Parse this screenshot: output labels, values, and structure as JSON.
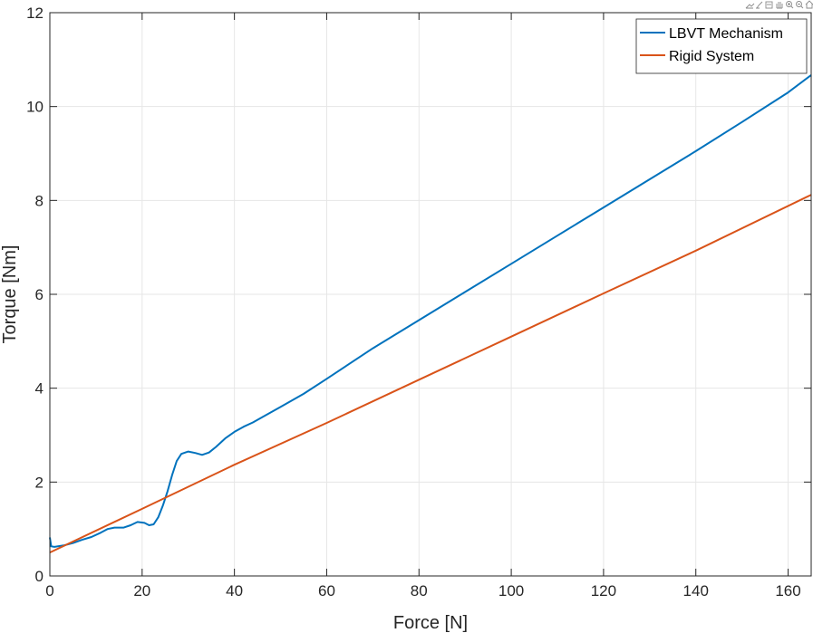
{
  "chart_data": {
    "type": "line",
    "xlabel": "Force [N]",
    "ylabel": "Torque [Nm]",
    "xlim": [
      0,
      165
    ],
    "ylim": [
      0,
      12
    ],
    "xticks": [
      0,
      20,
      40,
      60,
      80,
      100,
      120,
      140,
      160
    ],
    "yticks": [
      0,
      2,
      4,
      6,
      8,
      10,
      12
    ],
    "grid": true,
    "legend_position": "top-right",
    "series": [
      {
        "name": "LBVT Mechanism",
        "color": "#0072BD",
        "points": [
          [
            0,
            0.82
          ],
          [
            0.3,
            0.63
          ],
          [
            1,
            0.62
          ],
          [
            3,
            0.65
          ],
          [
            5,
            0.7
          ],
          [
            7,
            0.77
          ],
          [
            9,
            0.83
          ],
          [
            11,
            0.92
          ],
          [
            12.5,
            1.0
          ],
          [
            14,
            1.03
          ],
          [
            16,
            1.03
          ],
          [
            17.5,
            1.08
          ],
          [
            19,
            1.15
          ],
          [
            20.5,
            1.13
          ],
          [
            21.5,
            1.08
          ],
          [
            22.5,
            1.1
          ],
          [
            23.5,
            1.25
          ],
          [
            24.5,
            1.5
          ],
          [
            25.5,
            1.8
          ],
          [
            26.5,
            2.15
          ],
          [
            27.5,
            2.45
          ],
          [
            28.5,
            2.6
          ],
          [
            30,
            2.65
          ],
          [
            31.5,
            2.62
          ],
          [
            33,
            2.58
          ],
          [
            34.5,
            2.63
          ],
          [
            36,
            2.75
          ],
          [
            38,
            2.93
          ],
          [
            40,
            3.07
          ],
          [
            42,
            3.18
          ],
          [
            44,
            3.27
          ],
          [
            46,
            3.38
          ],
          [
            50,
            3.6
          ],
          [
            55,
            3.88
          ],
          [
            60,
            4.2
          ],
          [
            70,
            4.85
          ],
          [
            80,
            5.45
          ],
          [
            90,
            6.05
          ],
          [
            100,
            6.65
          ],
          [
            110,
            7.25
          ],
          [
            120,
            7.85
          ],
          [
            130,
            8.45
          ],
          [
            140,
            9.05
          ],
          [
            150,
            9.67
          ],
          [
            160,
            10.3
          ],
          [
            165,
            10.67
          ]
        ]
      },
      {
        "name": "Rigid System",
        "color": "#D95319",
        "points": [
          [
            0,
            0.5
          ],
          [
            20,
            1.43
          ],
          [
            40,
            2.37
          ],
          [
            60,
            3.26
          ],
          [
            80,
            4.18
          ],
          [
            100,
            5.1
          ],
          [
            120,
            6.02
          ],
          [
            140,
            6.93
          ],
          [
            165,
            8.12
          ]
        ]
      }
    ]
  },
  "toolbar": {
    "icons": [
      "export-icon",
      "brush-icon",
      "datatip-icon",
      "pan-icon",
      "zoom-in-icon",
      "zoom-out-icon",
      "home-icon"
    ]
  }
}
